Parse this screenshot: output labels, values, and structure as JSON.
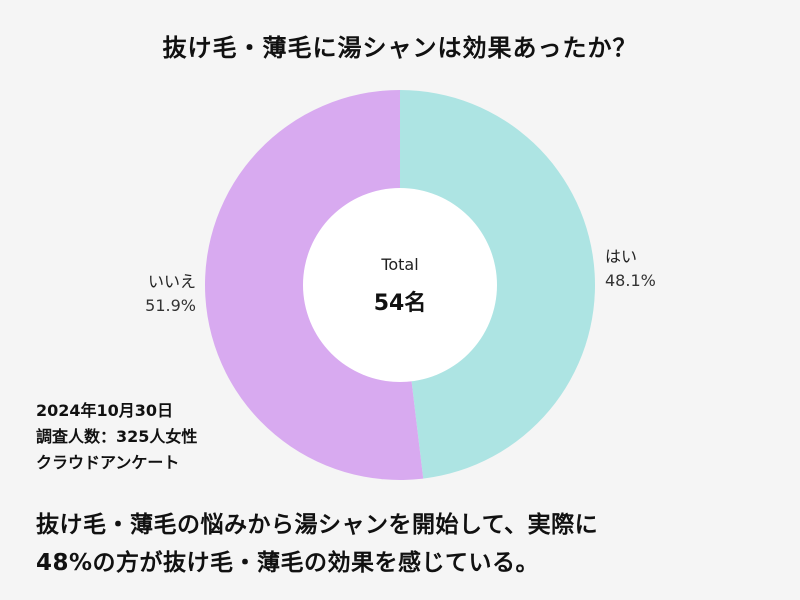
{
  "title": "抜け毛・薄毛に湯シャンは効果あったか？",
  "chart_data": {
    "type": "pie",
    "donut": true,
    "title": "抜け毛・薄毛に湯シャンは効果あったか？",
    "center": {
      "label": "Total",
      "value": "54名"
    },
    "slices": [
      {
        "name": "はい",
        "value": 48.1,
        "label": "48.1%",
        "color": "#ade4e3"
      },
      {
        "name": "いいえ",
        "value": 51.9,
        "label": "51.9%",
        "color": "#d8aaf0"
      }
    ]
  },
  "survey_info": {
    "date": "2024年10月30日",
    "subjects": "調査人数：325人女性",
    "method": "クラウドアンケート"
  },
  "conclusion": {
    "line1": "抜け毛・薄毛の悩みから湯シャンを開始して、実際に",
    "line2": "48%の方が抜け毛・薄毛の効果を感じている。"
  }
}
